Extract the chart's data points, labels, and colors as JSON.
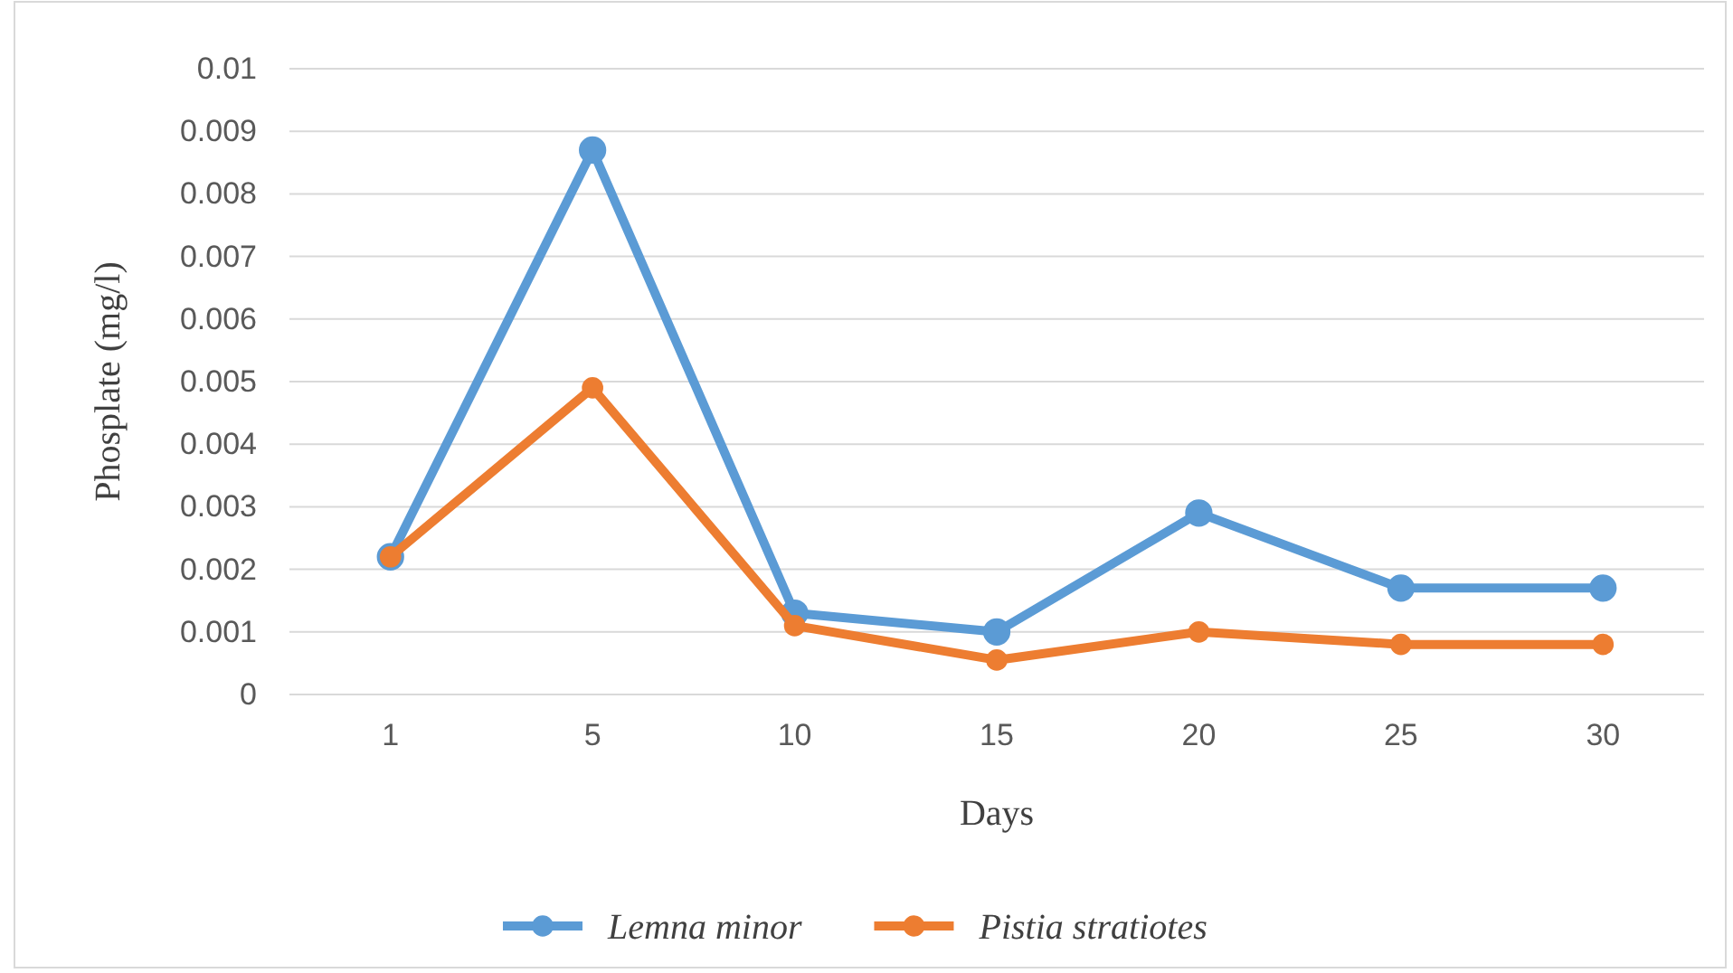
{
  "chart_data": {
    "type": "line",
    "xlabel": "Days",
    "ylabel": "Phosplate (mg/l)",
    "categories": [
      "1",
      "5",
      "10",
      "15",
      "20",
      "25",
      "30"
    ],
    "series": [
      {
        "name": "Lemna minor",
        "color": "#5b9bd5",
        "values": [
          0.0022,
          0.0087,
          0.0013,
          0.001,
          0.0029,
          0.0017,
          0.0017
        ]
      },
      {
        "name": "Pistia stratiotes",
        "color": "#ed7d31",
        "values": [
          0.0022,
          0.0049,
          0.0011,
          0.00055,
          0.001,
          0.0008,
          0.0008
        ]
      }
    ],
    "ylim": [
      0,
      0.01
    ],
    "yticks": [
      0,
      0.001,
      0.002,
      0.003,
      0.004,
      0.005,
      0.006,
      0.007,
      0.008,
      0.009,
      0.01
    ],
    "grid": "y",
    "legend": "bottom",
    "marker": "circle",
    "line_style": "solid"
  }
}
